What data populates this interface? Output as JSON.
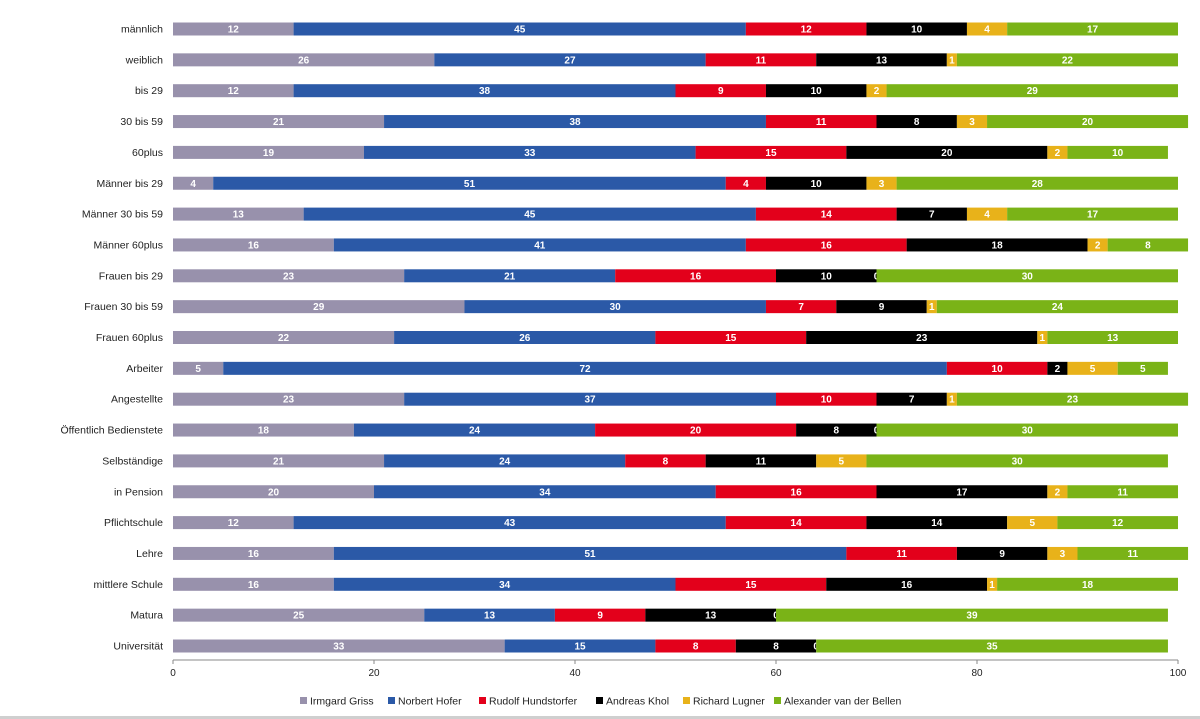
{
  "chart_data": {
    "type": "bar",
    "orientation": "horizontal",
    "stacked": true,
    "categories": [
      "männlich",
      "weiblich",
      "bis 29",
      "30 bis 59",
      "60plus",
      "Männer bis 29",
      "Männer 30 bis 59",
      "Männer 60plus",
      "Frauen bis 29",
      "Frauen 30 bis 59",
      "Frauen 60plus",
      "Arbeiter",
      "Angestellte",
      "Öffentlich Bedienstete",
      "Selbständige",
      "in Pension",
      "Pflichtschule",
      "Lehre",
      "mittlere Schule",
      "Matura",
      "Universität"
    ],
    "series": [
      {
        "name": "Irmgard Griss",
        "color": "#9891ac",
        "values": [
          12,
          26,
          12,
          21,
          19,
          4,
          13,
          16,
          23,
          29,
          22,
          5,
          23,
          18,
          21,
          20,
          12,
          16,
          16,
          25,
          33
        ]
      },
      {
        "name": "Norbert Hofer",
        "color": "#2b59a7",
        "values": [
          45,
          27,
          38,
          38,
          33,
          51,
          45,
          41,
          21,
          30,
          26,
          72,
          37,
          24,
          24,
          34,
          43,
          51,
          34,
          13,
          15
        ]
      },
      {
        "name": "Rudolf Hundstorfer",
        "color": "#e3001b",
        "values": [
          12,
          11,
          9,
          11,
          15,
          4,
          14,
          16,
          16,
          7,
          15,
          10,
          10,
          20,
          8,
          16,
          14,
          11,
          15,
          9,
          8
        ]
      },
      {
        "name": "Andreas Khol",
        "color": "#000000",
        "values": [
          10,
          13,
          10,
          8,
          20,
          10,
          7,
          18,
          10,
          9,
          23,
          2,
          7,
          8,
          11,
          17,
          14,
          9,
          16,
          13,
          8
        ]
      },
      {
        "name": "Richard Lugner",
        "color": "#e8b21a",
        "values": [
          4,
          1,
          2,
          3,
          2,
          3,
          4,
          2,
          0,
          1,
          1,
          5,
          1,
          0,
          5,
          2,
          5,
          3,
          1,
          0,
          0
        ]
      },
      {
        "name": "Alexander van der Bellen",
        "color": "#7ab317",
        "values": [
          17,
          22,
          29,
          20,
          10,
          28,
          17,
          8,
          30,
          24,
          13,
          5,
          23,
          30,
          30,
          11,
          12,
          11,
          18,
          39,
          35
        ]
      }
    ],
    "xlim": [
      0,
      100
    ],
    "xticks": [
      "0",
      "20",
      "40",
      "60",
      "80",
      "100"
    ],
    "grid": false,
    "legend": "bottom"
  }
}
